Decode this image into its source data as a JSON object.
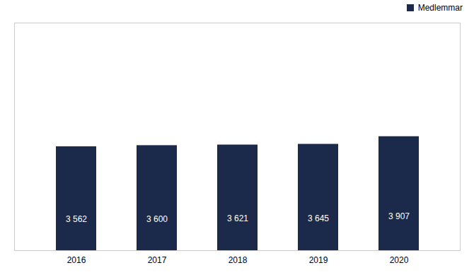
{
  "chart_data": {
    "type": "bar",
    "categories": [
      "2016",
      "2017",
      "2018",
      "2019",
      "2020"
    ],
    "series": [
      {
        "name": "Medlemmar",
        "color": "#1b2a4a",
        "values": [
          3562,
          3600,
          3621,
          3645,
          3907
        ],
        "value_labels": [
          "3 562",
          "3 600",
          "3 621",
          "3 645",
          "3 907"
        ]
      }
    ],
    "ylim": [
      0,
      7800
    ],
    "grid": false,
    "legend": "upper right",
    "data_labels": true,
    "tick_labels": "x"
  }
}
